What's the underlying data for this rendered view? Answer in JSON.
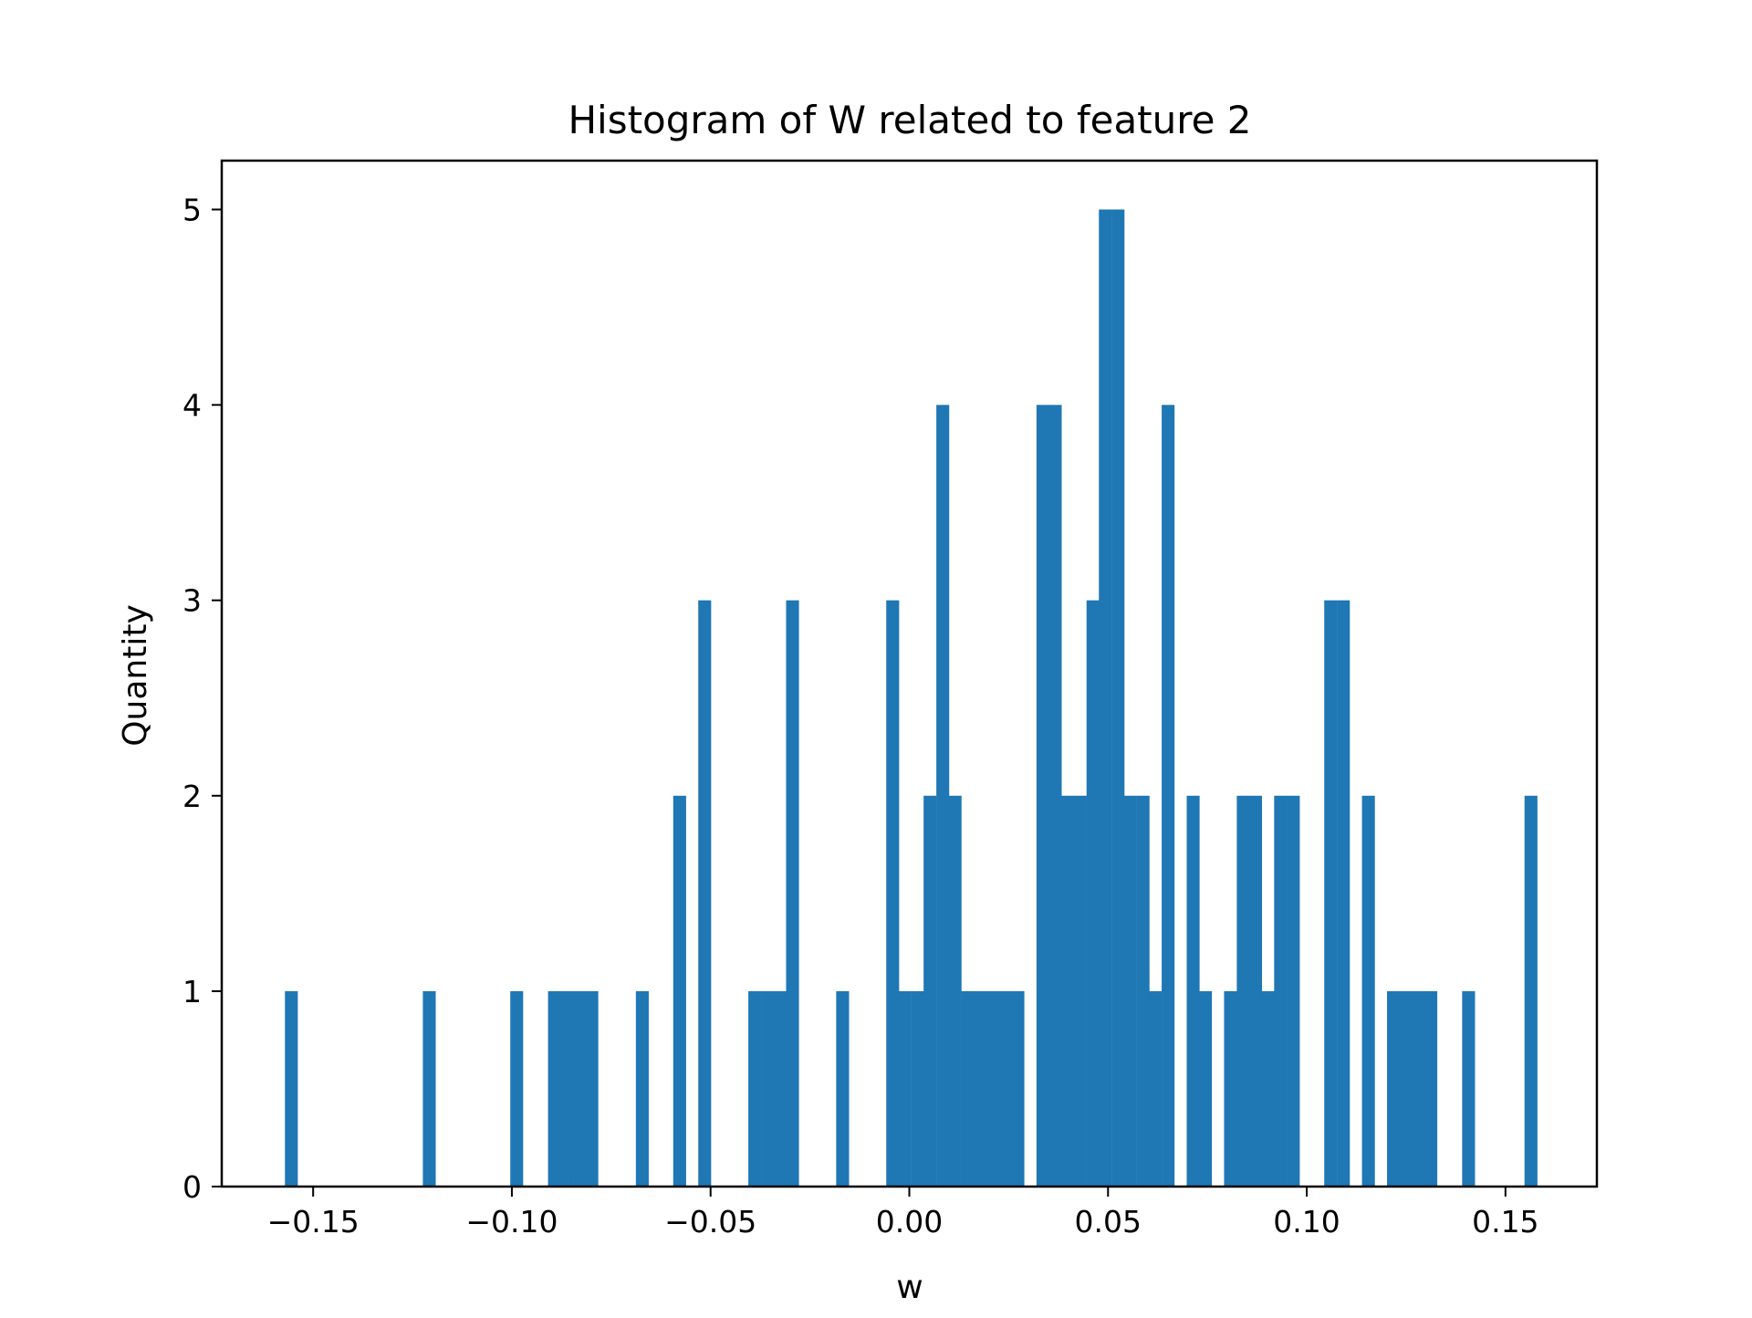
{
  "chart_data": {
    "type": "bar",
    "title": "Histogram of W related to feature 2",
    "xlabel": "w",
    "ylabel": "Quantity",
    "bar_color": "#1f77b4",
    "xlim": [
      -0.173,
      0.173
    ],
    "ylim": [
      0,
      5.25
    ],
    "x_ticks": [
      -0.15,
      -0.1,
      -0.05,
      0.0,
      0.05,
      0.1,
      0.15
    ],
    "x_tick_labels": [
      "−0.15",
      "−0.10",
      "−0.05",
      "0.00",
      "0.05",
      "0.10",
      "0.15"
    ],
    "y_ticks": [
      0,
      1,
      2,
      3,
      4,
      5
    ],
    "y_tick_labels": [
      "0",
      "1",
      "2",
      "3",
      "4",
      "5"
    ],
    "bin_width": 0.00315,
    "bins": [
      {
        "x": -0.1571,
        "count": 1
      },
      {
        "x": -0.1224,
        "count": 1
      },
      {
        "x": -0.1004,
        "count": 1
      },
      {
        "x": -0.0909,
        "count": 1
      },
      {
        "x": -0.0878,
        "count": 1
      },
      {
        "x": -0.0846,
        "count": 1
      },
      {
        "x": -0.0815,
        "count": 1
      },
      {
        "x": -0.0688,
        "count": 1
      },
      {
        "x": -0.0594,
        "count": 2
      },
      {
        "x": -0.0531,
        "count": 3
      },
      {
        "x": -0.0405,
        "count": 1
      },
      {
        "x": -0.0373,
        "count": 1
      },
      {
        "x": -0.0342,
        "count": 1
      },
      {
        "x": -0.031,
        "count": 3
      },
      {
        "x": -0.0184,
        "count": 1
      },
      {
        "x": -0.0058,
        "count": 3
      },
      {
        "x": -0.0027,
        "count": 1
      },
      {
        "x": 0.0005,
        "count": 1
      },
      {
        "x": 0.0036,
        "count": 2
      },
      {
        "x": 0.0068,
        "count": 4
      },
      {
        "x": 0.0099,
        "count": 2
      },
      {
        "x": 0.0131,
        "count": 1
      },
      {
        "x": 0.0162,
        "count": 1
      },
      {
        "x": 0.0194,
        "count": 1
      },
      {
        "x": 0.0225,
        "count": 1
      },
      {
        "x": 0.0257,
        "count": 1
      },
      {
        "x": 0.032,
        "count": 4
      },
      {
        "x": 0.0351,
        "count": 4
      },
      {
        "x": 0.0383,
        "count": 2
      },
      {
        "x": 0.0414,
        "count": 2
      },
      {
        "x": 0.0446,
        "count": 3
      },
      {
        "x": 0.0477,
        "count": 5
      },
      {
        "x": 0.0509,
        "count": 5
      },
      {
        "x": 0.054,
        "count": 2
      },
      {
        "x": 0.0572,
        "count": 2
      },
      {
        "x": 0.0603,
        "count": 1
      },
      {
        "x": 0.0635,
        "count": 4
      },
      {
        "x": 0.0698,
        "count": 2
      },
      {
        "x": 0.0729,
        "count": 1
      },
      {
        "x": 0.0792,
        "count": 1
      },
      {
        "x": 0.0824,
        "count": 2
      },
      {
        "x": 0.0855,
        "count": 2
      },
      {
        "x": 0.0887,
        "count": 1
      },
      {
        "x": 0.0918,
        "count": 2
      },
      {
        "x": 0.095,
        "count": 2
      },
      {
        "x": 0.1044,
        "count": 3
      },
      {
        "x": 0.1076,
        "count": 3
      },
      {
        "x": 0.1139,
        "count": 2
      },
      {
        "x": 0.1202,
        "count": 1
      },
      {
        "x": 0.1233,
        "count": 1
      },
      {
        "x": 0.1265,
        "count": 1
      },
      {
        "x": 0.1296,
        "count": 1
      },
      {
        "x": 0.1391,
        "count": 1
      },
      {
        "x": 0.1548,
        "count": 2
      }
    ]
  }
}
